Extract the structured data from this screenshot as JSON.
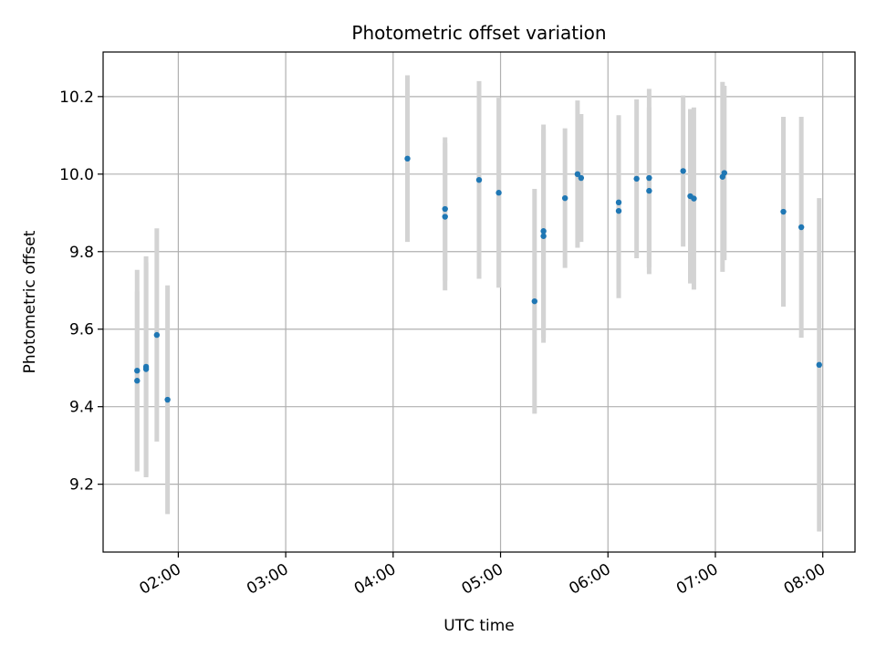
{
  "chart_data": {
    "type": "scatter",
    "title": "Photometric offset variation",
    "xlabel": "UTC time",
    "ylabel": "Photometric offset",
    "x_range": [
      "01:18",
      "08:18"
    ],
    "ylim": [
      9.025,
      10.315
    ],
    "grid": true,
    "x_ticks": [
      "02:00",
      "03:00",
      "04:00",
      "05:00",
      "06:00",
      "07:00",
      "08:00"
    ],
    "y_ticks": [
      "9.2",
      "9.4",
      "9.6",
      "9.8",
      "10.0",
      "10.2"
    ],
    "colors": {
      "point": "#1f77b4",
      "error_bar": "#d3d3d3",
      "grid": "#b0b0b0"
    },
    "points": [
      {
        "x": "01:37",
        "y": 9.493,
        "yerr": 0.26
      },
      {
        "x": "01:37",
        "y": 9.467,
        "yerr": 0.23
      },
      {
        "x": "01:42",
        "y": 9.503,
        "yerr": 0.285
      },
      {
        "x": "01:42",
        "y": 9.497,
        "yerr": 0.275
      },
      {
        "x": "01:48",
        "y": 9.585,
        "yerr": 0.275
      },
      {
        "x": "01:54",
        "y": 9.418,
        "yerr": 0.295
      },
      {
        "x": "04:08",
        "y": 10.04,
        "yerr": 0.215
      },
      {
        "x": "04:29",
        "y": 9.91,
        "yerr": 0.185
      },
      {
        "x": "04:29",
        "y": 9.89,
        "yerr": 0.19
      },
      {
        "x": "04:48",
        "y": 9.985,
        "yerr": 0.255
      },
      {
        "x": "04:59",
        "y": 9.952,
        "yerr": 0.245
      },
      {
        "x": "05:19",
        "y": 9.672,
        "yerr": 0.29
      },
      {
        "x": "05:24",
        "y": 9.853,
        "yerr": 0.275
      },
      {
        "x": "05:24",
        "y": 9.84,
        "yerr": 0.275
      },
      {
        "x": "05:36",
        "y": 9.938,
        "yerr": 0.18
      },
      {
        "x": "05:43",
        "y": 10.0,
        "yerr": 0.19
      },
      {
        "x": "05:45",
        "y": 9.99,
        "yerr": 0.165
      },
      {
        "x": "06:06",
        "y": 9.927,
        "yerr": 0.225
      },
      {
        "x": "06:06",
        "y": 9.905,
        "yerr": 0.225
      },
      {
        "x": "06:16",
        "y": 9.988,
        "yerr": 0.205
      },
      {
        "x": "06:23",
        "y": 9.99,
        "yerr": 0.23
      },
      {
        "x": "06:23",
        "y": 9.957,
        "yerr": 0.215
      },
      {
        "x": "06:42",
        "y": 10.008,
        "yerr": 0.195
      },
      {
        "x": "06:46",
        "y": 9.943,
        "yerr": 0.225
      },
      {
        "x": "06:48",
        "y": 9.937,
        "yerr": 0.235
      },
      {
        "x": "07:04",
        "y": 9.993,
        "yerr": 0.245
      },
      {
        "x": "07:05",
        "y": 10.003,
        "yerr": 0.225
      },
      {
        "x": "07:38",
        "y": 9.903,
        "yerr": 0.245
      },
      {
        "x": "07:48",
        "y": 9.863,
        "yerr": 0.285
      },
      {
        "x": "07:58",
        "y": 9.508,
        "yerr": 0.43
      }
    ]
  }
}
